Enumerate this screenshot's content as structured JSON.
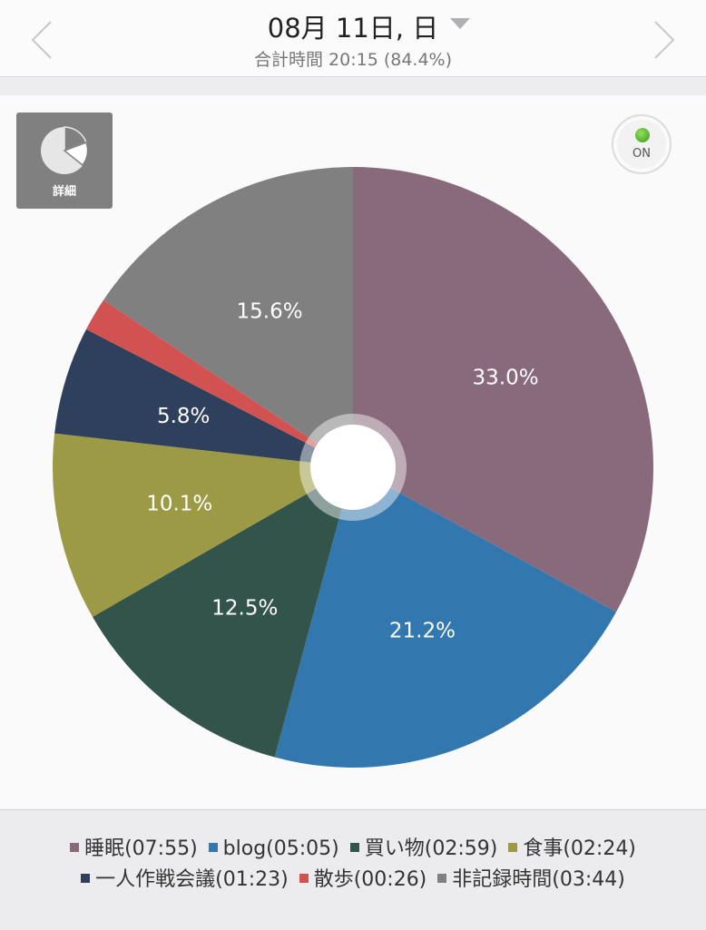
{
  "header": {
    "date": "08月 11日, 日",
    "subtitle": "合計時間 20:15 (84.4%)"
  },
  "controls": {
    "detail_label": "詳細",
    "toggle_label": "ON"
  },
  "chart_data": {
    "type": "pie",
    "start": "12 o'clock, clockwise",
    "slices": [
      {
        "name": "睡眠",
        "time": "07:55",
        "percent": 33.0,
        "label": "33.0%",
        "color": "#896a7c"
      },
      {
        "name": "blog",
        "time": "05:05",
        "percent": 21.2,
        "label": "21.2%",
        "color": "#3277ae"
      },
      {
        "name": "買い物",
        "time": "02:59",
        "percent": 12.5,
        "label": "12.5%",
        "color": "#33544b"
      },
      {
        "name": "食事",
        "time": "02:24",
        "percent": 10.1,
        "label": "10.1%",
        "color": "#9c9a44"
      },
      {
        "name": "一人作戦会議",
        "time": "01:23",
        "percent": 5.8,
        "label": "5.8%",
        "color": "#2f405c"
      },
      {
        "name": "散歩",
        "time": "00:26",
        "percent": 1.8,
        "label": "",
        "color": "#d25252"
      },
      {
        "name": "非記録時間",
        "time": "03:44",
        "percent": 15.6,
        "label": "15.6%",
        "color": "#808080"
      }
    ]
  },
  "legend": {
    "row1": [
      {
        "text": "睡眠(07:55)",
        "color": "#896a7c"
      },
      {
        "text": "blog(05:05)",
        "color": "#3277ae"
      },
      {
        "text": "買い物(02:59)",
        "color": "#33544b"
      },
      {
        "text": "食事(02:24)",
        "color": "#9c9a44"
      }
    ],
    "row2": [
      {
        "text": "一人作戦会議(01:23)",
        "color": "#2f405c"
      },
      {
        "text": "散歩(00:26)",
        "color": "#d25252"
      },
      {
        "text": "非記録時間(03:44)",
        "color": "#808080"
      }
    ]
  }
}
